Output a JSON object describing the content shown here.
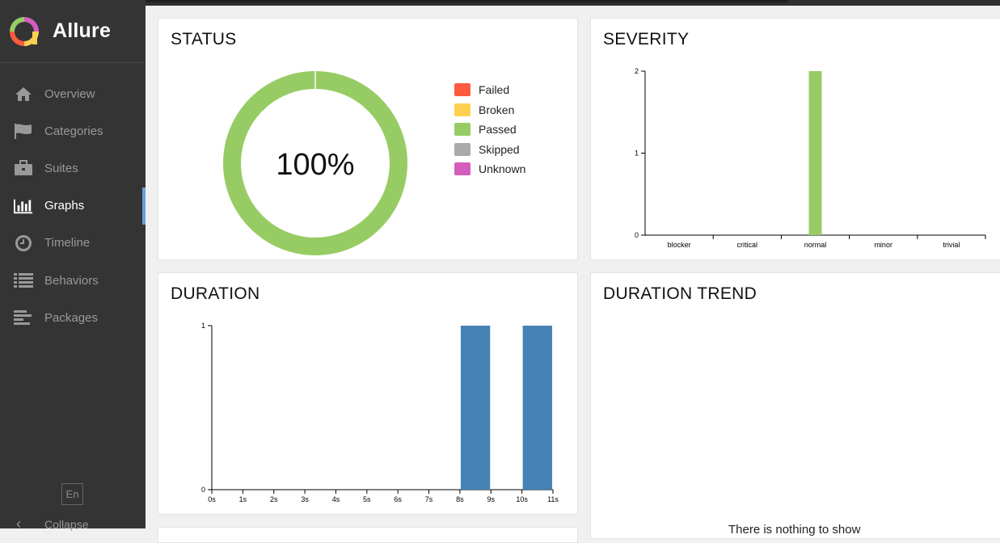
{
  "app": {
    "name": "Allure",
    "language": "En",
    "collapse_label": "Collapse"
  },
  "nav": [
    {
      "label": "Overview",
      "icon": "home-icon",
      "active": false
    },
    {
      "label": "Categories",
      "icon": "flag-icon",
      "active": false
    },
    {
      "label": "Suites",
      "icon": "briefcase-icon",
      "active": false
    },
    {
      "label": "Graphs",
      "icon": "bar-chart-icon",
      "active": true
    },
    {
      "label": "Timeline",
      "icon": "clock-icon",
      "active": false
    },
    {
      "label": "Behaviors",
      "icon": "list-icon",
      "active": false
    },
    {
      "label": "Packages",
      "icon": "align-left-icon",
      "active": false
    }
  ],
  "status": {
    "title": "STATUS",
    "percent_label": "100%",
    "legend": [
      {
        "label": "Failed",
        "color": "#fd5a3e"
      },
      {
        "label": "Broken",
        "color": "#ffd050"
      },
      {
        "label": "Passed",
        "color": "#97cc64"
      },
      {
        "label": "Skipped",
        "color": "#aaaaaa"
      },
      {
        "label": "Unknown",
        "color": "#d35ebe"
      }
    ]
  },
  "severity": {
    "title": "SEVERITY"
  },
  "duration": {
    "title": "DURATION"
  },
  "duration_trend": {
    "title": "DURATION TREND",
    "message": "There is nothing to show"
  },
  "chart_data": [
    {
      "type": "pie",
      "title": "STATUS",
      "categories": [
        "Failed",
        "Broken",
        "Passed",
        "Skipped",
        "Unknown"
      ],
      "values": [
        0,
        0,
        100,
        0,
        0
      ],
      "center_label": "100%",
      "legend": "right"
    },
    {
      "type": "bar",
      "title": "SEVERITY",
      "categories": [
        "blocker",
        "critical",
        "normal",
        "minor",
        "trivial"
      ],
      "values": [
        0,
        0,
        2,
        0,
        0
      ],
      "color": "#97cc64",
      "ylim": [
        0,
        2
      ],
      "yticks": [
        0,
        1,
        2
      ]
    },
    {
      "type": "bar",
      "title": "DURATION",
      "x_ticks": [
        "0s",
        "1s",
        "2s",
        "3s",
        "4s",
        "5s",
        "6s",
        "7s",
        "8s",
        "9s",
        "10s",
        "11s"
      ],
      "bins": [
        {
          "from": 8,
          "to": 9,
          "count": 1
        },
        {
          "from": 10,
          "to": 11,
          "count": 1
        }
      ],
      "x_unit": "s",
      "xlim": [
        0,
        11
      ],
      "ylim": [
        0,
        1
      ],
      "yticks": [
        0,
        1
      ],
      "color": "#4682b4"
    }
  ]
}
